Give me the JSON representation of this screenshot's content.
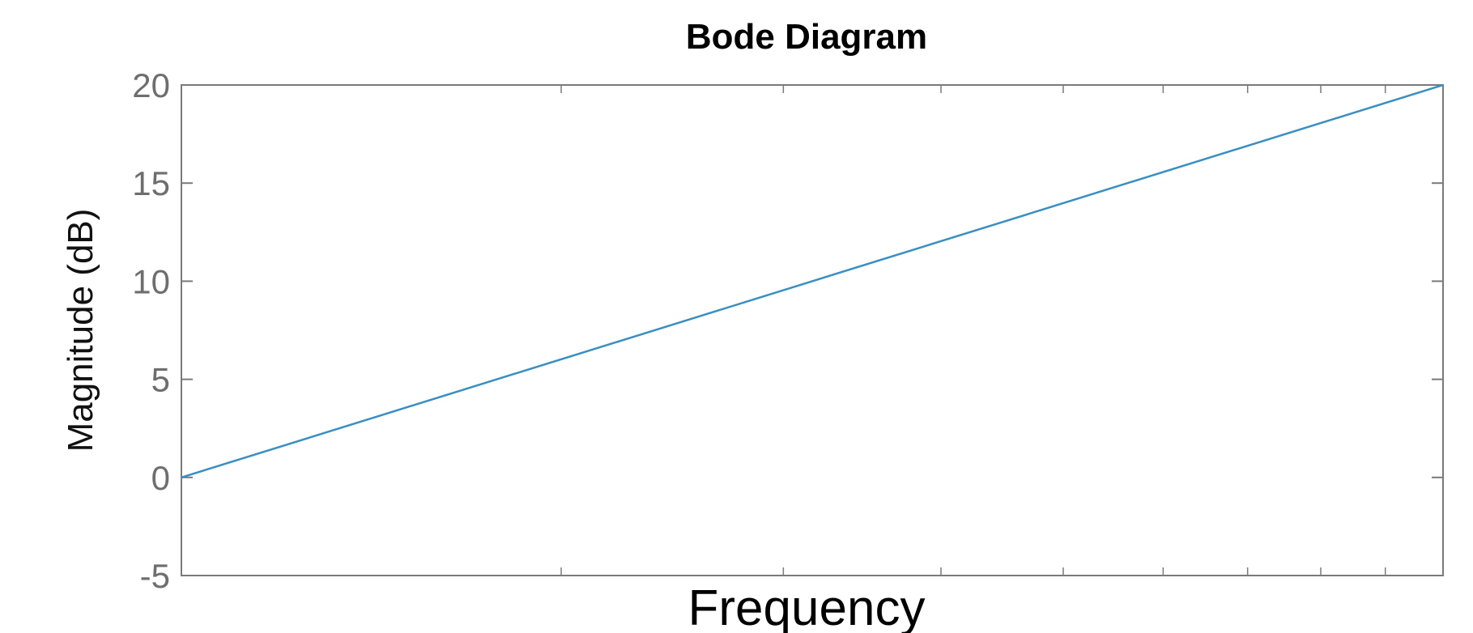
{
  "chart_data": {
    "type": "line",
    "title": "Bode Diagram",
    "xlabel": "Frequency",
    "ylabel": "Magnitude (dB)",
    "x_scale": "log",
    "x_decades": 1,
    "ylim": [
      -5,
      20
    ],
    "yticks": [
      20,
      15,
      10,
      5,
      0,
      -5
    ],
    "ytick_labels": [
      "20",
      "15",
      "10",
      "5",
      "0",
      "-5"
    ],
    "grid": false,
    "series": [
      {
        "x": [
          1,
          10
        ],
        "y": [
          0,
          20
        ],
        "color": "#3a8fc0"
      }
    ],
    "colors": {
      "axes": "#7a7a7a",
      "tick_label": "#6e6e6e",
      "line": "#3a8fc0"
    }
  }
}
